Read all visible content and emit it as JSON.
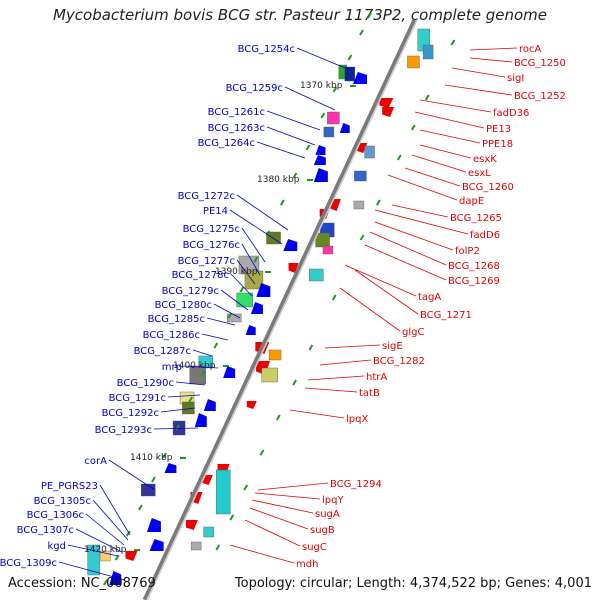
{
  "title": "Mycobacterium bovis BCG str. Pasteur 1173P2, complete genome",
  "accession": "Accession: NC_008769",
  "topology": "Topology: circular; Length: 4,374,522 bp; Genes: 4,001",
  "colors": {
    "left_label": "#0000cc",
    "right_label": "#e00000",
    "backbone": "#888888",
    "tick": "#1a9a1a"
  },
  "kbp_marks": [
    "1370 kbp",
    "1380 kbp",
    "1390 kbp",
    "1400 kbp",
    "1410 kbp",
    "1420 kbp"
  ],
  "left_genes": [
    "BCG_1254c",
    "BCG_1259c",
    "BCG_1261c",
    "BCG_1263c",
    "BCG_1264c",
    "BCG_1272c",
    "PE14",
    "BCG_1275c",
    "BCG_1276c",
    "BCG_1277c",
    "BCG_1278c",
    "BCG_1279c",
    "BCG_1280c",
    "BCG_1285c",
    "BCG_1286c",
    "BCG_1287c",
    "mrp",
    "BCG_1290c",
    "BCG_1291c",
    "BCG_1292c",
    "BCG_1293c",
    "corA",
    "PE_PGRS23",
    "BCG_1305c",
    "BCG_1306c",
    "BCG_1307c",
    "kgd",
    "BCG_1309c"
  ],
  "right_genes": [
    "rocA",
    "BCG_1250",
    "sigI",
    "BCG_1252",
    "fadD36",
    "PE13",
    "PPE18",
    "esxK",
    "esxL",
    "BCG_1260",
    "dapE",
    "BCG_1265",
    "fadD6",
    "folP2",
    "BCG_1268",
    "BCG_1269",
    "tagA",
    "BCG_1271",
    "glgC",
    "sigE",
    "BCG_1282",
    "htrA",
    "tatB",
    "lpqX",
    "BCG_1294",
    "lpqY",
    "sugA",
    "sugB",
    "sugC",
    "mdh"
  ]
}
